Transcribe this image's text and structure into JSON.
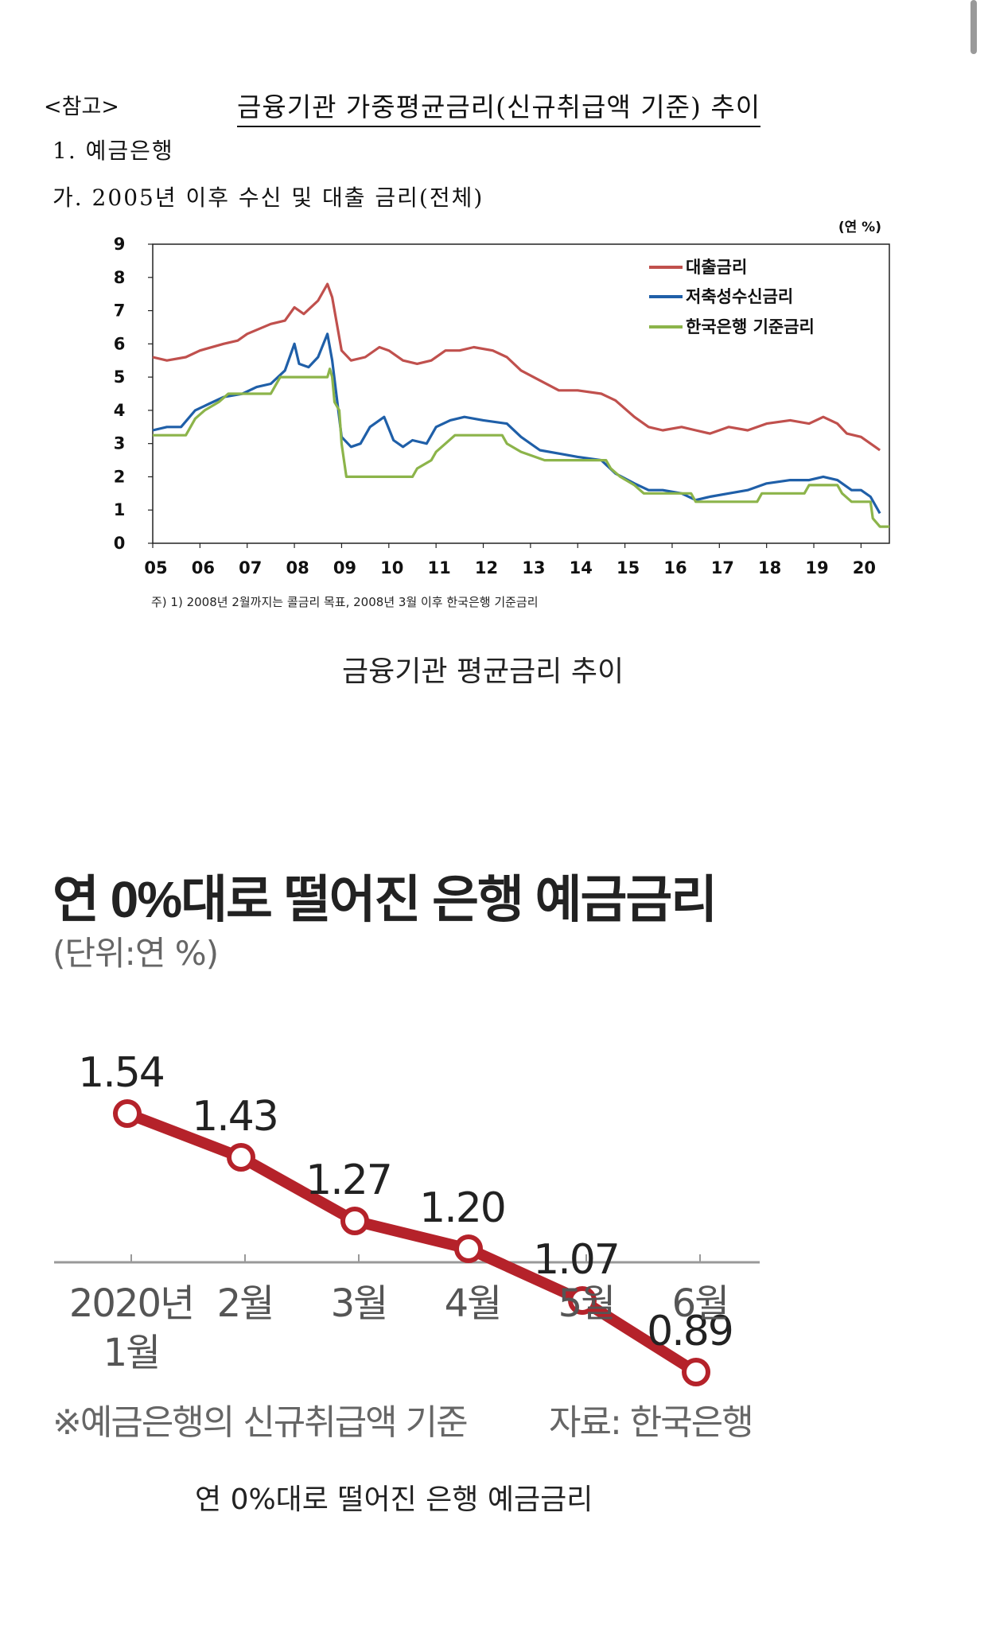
{
  "header": {
    "note_ref": "<참고>",
    "doc_title": "금융기관 가중평균금리(신규취급액 기준) 추이",
    "section1": "1. 예금은행",
    "section2": "가. 2005년 이후 수신 및 대출 금리(전체)"
  },
  "captions": {
    "chart1": "금융기관 평균금리 추이",
    "chart2": "연 0%대로 떨어진 은행 예금금리"
  },
  "chart2_text": {
    "title": "연 0%대로 떨어진 은행 예금금리",
    "unit": "(단위:연 %)",
    "footnote": "※예금은행의 신규취급액 기준",
    "source": "자료: 한국은행"
  },
  "colors": {
    "loan": "#c0504d",
    "deposit": "#1f5fa8",
    "base": "#8cb44a",
    "chart2_line": "#b5222a"
  },
  "chart_data": [
    {
      "type": "line",
      "title": "",
      "unit_label": "(연 %)",
      "footnote": "주) 1) 2008년 2월까지는 콜금리 목표, 2008년 3월 이후 한국은행 기준금리",
      "xlabel": "",
      "ylabel": "",
      "xlim": [
        2005,
        2020.6
      ],
      "ylim": [
        0,
        9
      ],
      "yticks": [
        "0",
        "1",
        "2",
        "3",
        "4",
        "5",
        "6",
        "7",
        "8",
        "9"
      ],
      "xticks": [
        "05",
        "06",
        "07",
        "08",
        "09",
        "10",
        "11",
        "12",
        "13",
        "14",
        "15",
        "16",
        "17",
        "18",
        "19",
        "20"
      ],
      "legend_position": "top-right",
      "grid": false,
      "series": [
        {
          "name": "대출금리",
          "color": "#c0504d",
          "points": [
            [
              2005.0,
              5.6
            ],
            [
              2005.3,
              5.5
            ],
            [
              2005.7,
              5.6
            ],
            [
              2006.0,
              5.8
            ],
            [
              2006.5,
              6.0
            ],
            [
              2006.8,
              6.1
            ],
            [
              2007.0,
              6.3
            ],
            [
              2007.5,
              6.6
            ],
            [
              2007.8,
              6.7
            ],
            [
              2008.0,
              7.1
            ],
            [
              2008.2,
              6.9
            ],
            [
              2008.5,
              7.3
            ],
            [
              2008.7,
              7.8
            ],
            [
              2008.8,
              7.4
            ],
            [
              2009.0,
              5.8
            ],
            [
              2009.2,
              5.5
            ],
            [
              2009.5,
              5.6
            ],
            [
              2009.8,
              5.9
            ],
            [
              2010.0,
              5.8
            ],
            [
              2010.3,
              5.5
            ],
            [
              2010.6,
              5.4
            ],
            [
              2010.9,
              5.5
            ],
            [
              2011.2,
              5.8
            ],
            [
              2011.5,
              5.8
            ],
            [
              2011.8,
              5.9
            ],
            [
              2012.2,
              5.8
            ],
            [
              2012.5,
              5.6
            ],
            [
              2012.8,
              5.2
            ],
            [
              2013.2,
              4.9
            ],
            [
              2013.6,
              4.6
            ],
            [
              2014.0,
              4.6
            ],
            [
              2014.5,
              4.5
            ],
            [
              2014.8,
              4.3
            ],
            [
              2015.2,
              3.8
            ],
            [
              2015.5,
              3.5
            ],
            [
              2015.8,
              3.4
            ],
            [
              2016.2,
              3.5
            ],
            [
              2016.5,
              3.4
            ],
            [
              2016.8,
              3.3
            ],
            [
              2017.2,
              3.5
            ],
            [
              2017.6,
              3.4
            ],
            [
              2018.0,
              3.6
            ],
            [
              2018.5,
              3.7
            ],
            [
              2018.9,
              3.6
            ],
            [
              2019.2,
              3.8
            ],
            [
              2019.5,
              3.6
            ],
            [
              2019.7,
              3.3
            ],
            [
              2020.0,
              3.2
            ],
            [
              2020.3,
              2.9
            ],
            [
              2020.4,
              2.8
            ]
          ]
        },
        {
          "name": "저축성수신금리",
          "color": "#1f5fa8",
          "points": [
            [
              2005.0,
              3.4
            ],
            [
              2005.3,
              3.5
            ],
            [
              2005.6,
              3.5
            ],
            [
              2005.9,
              4.0
            ],
            [
              2006.2,
              4.2
            ],
            [
              2006.5,
              4.4
            ],
            [
              2006.9,
              4.5
            ],
            [
              2007.2,
              4.7
            ],
            [
              2007.5,
              4.8
            ],
            [
              2007.8,
              5.2
            ],
            [
              2008.0,
              6.0
            ],
            [
              2008.1,
              5.4
            ],
            [
              2008.3,
              5.3
            ],
            [
              2008.5,
              5.6
            ],
            [
              2008.7,
              6.3
            ],
            [
              2008.8,
              5.5
            ],
            [
              2009.0,
              3.2
            ],
            [
              2009.2,
              2.9
            ],
            [
              2009.4,
              3.0
            ],
            [
              2009.6,
              3.5
            ],
            [
              2009.9,
              3.8
            ],
            [
              2010.1,
              3.1
            ],
            [
              2010.3,
              2.9
            ],
            [
              2010.5,
              3.1
            ],
            [
              2010.8,
              3.0
            ],
            [
              2011.0,
              3.5
            ],
            [
              2011.3,
              3.7
            ],
            [
              2011.6,
              3.8
            ],
            [
              2012.0,
              3.7
            ],
            [
              2012.5,
              3.6
            ],
            [
              2012.8,
              3.2
            ],
            [
              2013.2,
              2.8
            ],
            [
              2013.6,
              2.7
            ],
            [
              2014.0,
              2.6
            ],
            [
              2014.5,
              2.5
            ],
            [
              2014.8,
              2.1
            ],
            [
              2015.2,
              1.8
            ],
            [
              2015.5,
              1.6
            ],
            [
              2015.8,
              1.6
            ],
            [
              2016.2,
              1.5
            ],
            [
              2016.5,
              1.3
            ],
            [
              2016.8,
              1.4
            ],
            [
              2017.2,
              1.5
            ],
            [
              2017.6,
              1.6
            ],
            [
              2018.0,
              1.8
            ],
            [
              2018.5,
              1.9
            ],
            [
              2018.9,
              1.9
            ],
            [
              2019.2,
              2.0
            ],
            [
              2019.5,
              1.9
            ],
            [
              2019.8,
              1.6
            ],
            [
              2020.0,
              1.6
            ],
            [
              2020.2,
              1.4
            ],
            [
              2020.4,
              0.9
            ]
          ]
        },
        {
          "name": "한국은행 기준금리",
          "color": "#8cb44a",
          "points": [
            [
              2005.0,
              3.25
            ],
            [
              2005.7,
              3.25
            ],
            [
              2005.9,
              3.75
            ],
            [
              2006.1,
              4.0
            ],
            [
              2006.4,
              4.25
            ],
            [
              2006.6,
              4.5
            ],
            [
              2007.5,
              4.5
            ],
            [
              2007.6,
              4.75
            ],
            [
              2007.7,
              5.0
            ],
            [
              2008.7,
              5.0
            ],
            [
              2008.75,
              5.25
            ],
            [
              2008.8,
              5.0
            ],
            [
              2008.85,
              4.25
            ],
            [
              2008.95,
              4.0
            ],
            [
              2009.0,
              3.0
            ],
            [
              2009.05,
              2.5
            ],
            [
              2009.1,
              2.0
            ],
            [
              2010.5,
              2.0
            ],
            [
              2010.6,
              2.25
            ],
            [
              2010.9,
              2.5
            ],
            [
              2011.0,
              2.75
            ],
            [
              2011.2,
              3.0
            ],
            [
              2011.4,
              3.25
            ],
            [
              2012.4,
              3.25
            ],
            [
              2012.5,
              3.0
            ],
            [
              2012.8,
              2.75
            ],
            [
              2013.3,
              2.5
            ],
            [
              2014.6,
              2.5
            ],
            [
              2014.7,
              2.25
            ],
            [
              2014.9,
              2.0
            ],
            [
              2015.2,
              1.75
            ],
            [
              2015.4,
              1.5
            ],
            [
              2016.4,
              1.5
            ],
            [
              2016.5,
              1.25
            ],
            [
              2017.8,
              1.25
            ],
            [
              2017.9,
              1.5
            ],
            [
              2018.8,
              1.5
            ],
            [
              2018.9,
              1.75
            ],
            [
              2019.5,
              1.75
            ],
            [
              2019.6,
              1.5
            ],
            [
              2019.8,
              1.25
            ],
            [
              2020.2,
              1.25
            ],
            [
              2020.25,
              0.75
            ],
            [
              2020.4,
              0.5
            ],
            [
              2020.6,
              0.5
            ]
          ]
        }
      ]
    },
    {
      "type": "line",
      "title": "연 0%대로 떨어진 은행 예금금리",
      "unit_label": "(단위:연 %)",
      "categories": [
        "2020년 1월",
        "2월",
        "3월",
        "4월",
        "5월",
        "6월"
      ],
      "category_lines": [
        [
          "2020년",
          "1월"
        ],
        [
          "2월"
        ],
        [
          "3월"
        ],
        [
          "4월"
        ],
        [
          "5월"
        ],
        [
          "6월"
        ]
      ],
      "values": [
        1.54,
        1.43,
        1.27,
        1.2,
        1.07,
        0.89
      ],
      "data_labels": [
        "1.54",
        "1.43",
        "1.27",
        "1.20",
        "1.07",
        "0.89"
      ],
      "ylim": [
        0.7,
        1.7
      ],
      "grid": false
    }
  ]
}
